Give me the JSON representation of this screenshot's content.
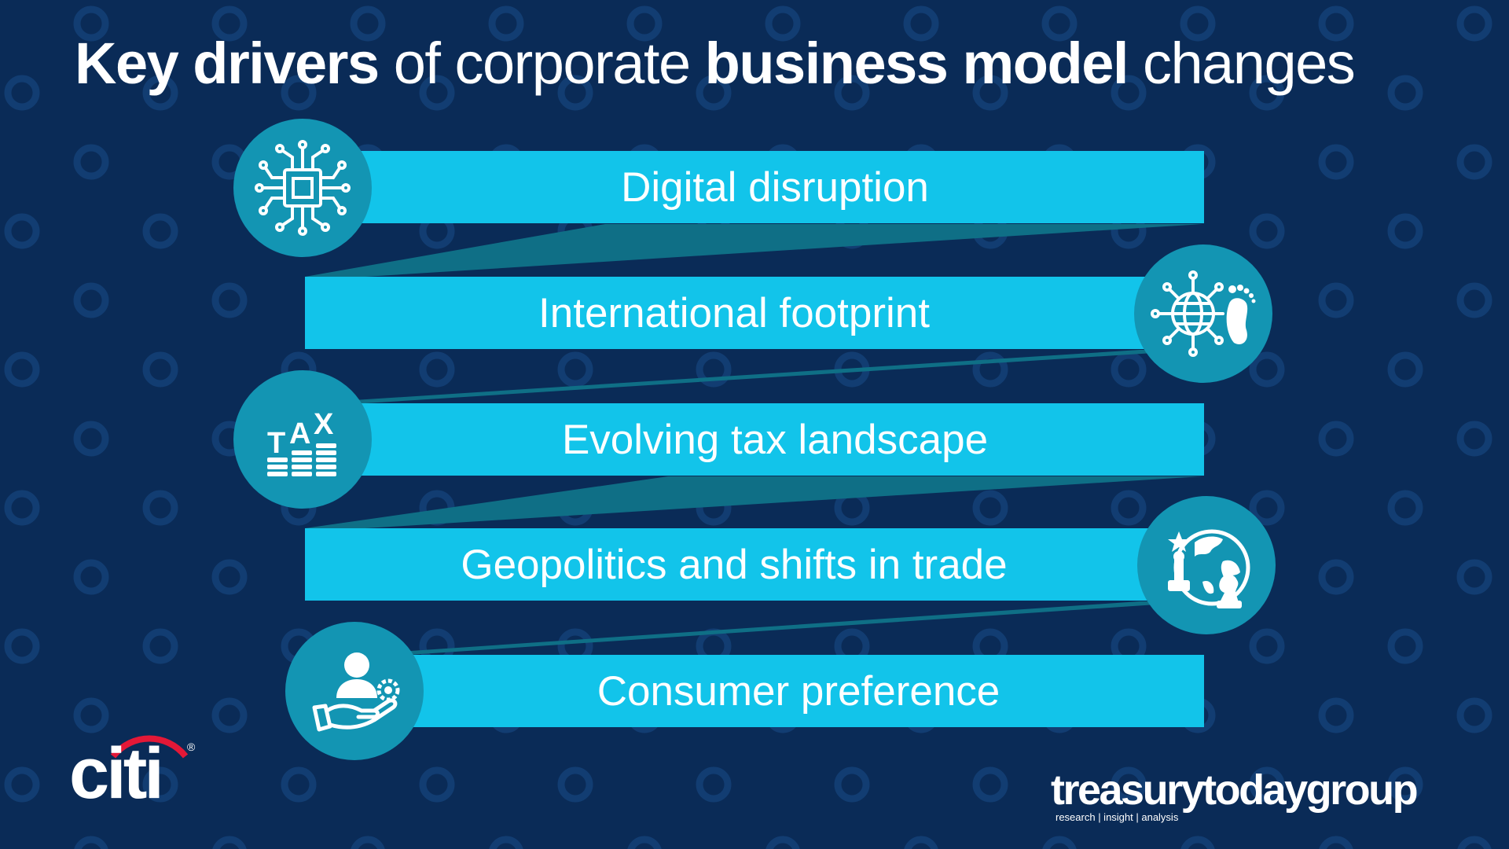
{
  "title": {
    "part1": "Key drivers",
    "part2": " of corporate ",
    "part3": "business model",
    "part4": " changes"
  },
  "drivers": [
    {
      "label": "Digital disruption",
      "icon": "microchip-icon"
    },
    {
      "label": "International footprint",
      "icon": "globe-footprint-icon"
    },
    {
      "label": "Evolving tax landscape",
      "icon": "tax-coins-icon"
    },
    {
      "label": "Geopolitics and shifts in trade",
      "icon": "globe-chess-icon"
    },
    {
      "label": "Consumer preference",
      "icon": "hand-person-gear-icon"
    }
  ],
  "logos": {
    "citi": "citi",
    "citi_reg": "®",
    "treasury": "treasurytodaygroup",
    "treasury_tagline": "research | insight | analysis"
  },
  "colors": {
    "background": "#0a2b57",
    "bar": "#12c4ea",
    "circle": "#1395b3",
    "connector": "#0f6f86",
    "citi_arc": "#e31837"
  }
}
